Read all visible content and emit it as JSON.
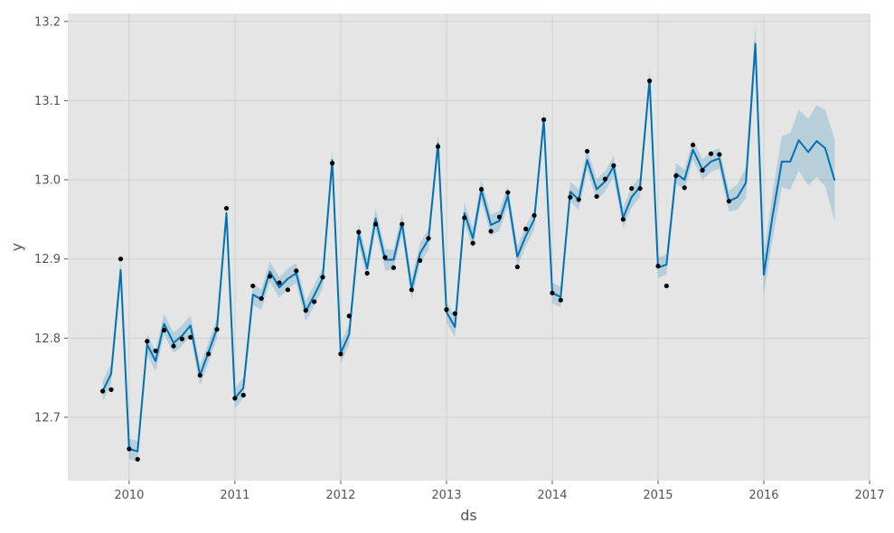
{
  "chart_data": {
    "type": "line",
    "title": "",
    "xlabel": "ds",
    "ylabel": "y",
    "xlim": [
      2009.42,
      2017.0
    ],
    "ylim": [
      12.62,
      13.21
    ],
    "grid": true,
    "x_ticks": [
      2010,
      2011,
      2012,
      2013,
      2014,
      2015,
      2016,
      2017
    ],
    "x_tick_labels": [
      "2010",
      "2011",
      "2012",
      "2013",
      "2014",
      "2015",
      "2016",
      "2017"
    ],
    "y_ticks": [
      12.7,
      12.8,
      12.9,
      13.0,
      13.1,
      13.2
    ],
    "y_tick_labels": [
      "12.7",
      "12.8",
      "12.9",
      "13.0",
      "13.1",
      "13.2"
    ],
    "colors": {
      "plot_background": "#e5e5e5",
      "grid": "#d0d0d0",
      "forecast_line": "#0072b2",
      "uncertainty_band": "#0072b2",
      "observed_points": "#000000"
    },
    "observed": {
      "x": [
        2009.75,
        2009.83,
        2009.92,
        2010.0,
        2010.08,
        2010.17,
        2010.25,
        2010.33,
        2010.42,
        2010.5,
        2010.58,
        2010.67,
        2010.75,
        2010.83,
        2010.92,
        2011.0,
        2011.08,
        2011.17,
        2011.25,
        2011.33,
        2011.42,
        2011.5,
        2011.58,
        2011.67,
        2011.75,
        2011.83,
        2011.92,
        2012.0,
        2012.08,
        2012.17,
        2012.25,
        2012.33,
        2012.42,
        2012.5,
        2012.58,
        2012.67,
        2012.75,
        2012.83,
        2012.92,
        2013.0,
        2013.08,
        2013.17,
        2013.25,
        2013.33,
        2013.42,
        2013.5,
        2013.58,
        2013.67,
        2013.75,
        2013.83,
        2013.92,
        2014.0,
        2014.08,
        2014.17,
        2014.25,
        2014.33,
        2014.42,
        2014.5,
        2014.58,
        2014.67,
        2014.75,
        2014.83,
        2014.92,
        2015.0,
        2015.08,
        2015.17,
        2015.25,
        2015.33,
        2015.42,
        2015.5,
        2015.58,
        2015.67
      ],
      "y": [
        12.733,
        12.735,
        12.9,
        12.66,
        12.647,
        12.796,
        12.784,
        12.81,
        12.79,
        12.799,
        12.801,
        12.753,
        12.78,
        12.811,
        12.964,
        12.724,
        12.728,
        12.866,
        12.85,
        12.878,
        12.87,
        12.861,
        12.885,
        12.835,
        12.846,
        12.877,
        13.021,
        12.78,
        12.828,
        12.934,
        12.882,
        12.944,
        12.902,
        12.889,
        12.944,
        12.861,
        12.898,
        12.926,
        13.042,
        12.836,
        12.831,
        12.952,
        12.92,
        12.988,
        12.935,
        12.953,
        12.984,
        12.89,
        12.938,
        12.955,
        13.076,
        12.857,
        12.848,
        12.978,
        12.975,
        13.036,
        12.979,
        13.001,
        13.018,
        12.95,
        12.989,
        12.989,
        13.125,
        12.891,
        12.866,
        13.005,
        12.99,
        13.044,
        13.012,
        13.033,
        13.032,
        12.973
      ]
    },
    "forecast": {
      "x": [
        2009.75,
        2009.83,
        2009.92,
        2010.0,
        2010.08,
        2010.17,
        2010.25,
        2010.33,
        2010.42,
        2010.5,
        2010.58,
        2010.67,
        2010.75,
        2010.83,
        2010.92,
        2011.0,
        2011.08,
        2011.17,
        2011.25,
        2011.33,
        2011.42,
        2011.5,
        2011.58,
        2011.67,
        2011.75,
        2011.83,
        2011.92,
        2012.0,
        2012.08,
        2012.17,
        2012.25,
        2012.33,
        2012.42,
        2012.5,
        2012.58,
        2012.67,
        2012.75,
        2012.83,
        2012.92,
        2013.0,
        2013.08,
        2013.17,
        2013.25,
        2013.33,
        2013.42,
        2013.5,
        2013.58,
        2013.67,
        2013.75,
        2013.83,
        2013.92,
        2014.0,
        2014.08,
        2014.17,
        2014.25,
        2014.33,
        2014.42,
        2014.5,
        2014.58,
        2014.67,
        2014.75,
        2014.83,
        2014.92,
        2015.0,
        2015.08,
        2015.17,
        2015.25,
        2015.33,
        2015.42,
        2015.5,
        2015.58,
        2015.67,
        2015.75,
        2015.83,
        2015.92,
        2016.0,
        2016.08,
        2016.17,
        2016.25,
        2016.33,
        2016.42,
        2016.5,
        2016.58,
        2016.67
      ],
      "yhat": [
        12.733,
        12.755,
        12.886,
        12.66,
        12.657,
        12.792,
        12.771,
        12.818,
        12.794,
        12.803,
        12.816,
        12.753,
        12.782,
        12.812,
        12.958,
        12.724,
        12.737,
        12.855,
        12.849,
        12.884,
        12.864,
        12.875,
        12.882,
        12.834,
        12.854,
        12.876,
        13.025,
        12.781,
        12.805,
        12.932,
        12.888,
        12.951,
        12.899,
        12.899,
        12.945,
        12.862,
        12.907,
        12.925,
        13.046,
        12.833,
        12.814,
        12.958,
        12.926,
        12.987,
        12.943,
        12.948,
        12.98,
        12.903,
        12.929,
        12.95,
        13.076,
        12.857,
        12.852,
        12.985,
        12.975,
        13.025,
        12.988,
        12.998,
        13.017,
        12.952,
        12.978,
        12.991,
        13.127,
        12.889,
        12.893,
        13.008,
        13.0,
        13.038,
        13.013,
        13.023,
        13.027,
        12.973,
        12.978,
        12.996,
        13.172,
        12.88,
        12.952,
        13.023,
        13.023,
        13.05,
        13.035,
        13.049,
        13.04,
        12.999
      ],
      "band_half_width_start": 0.013,
      "band_half_width_end": 0.052,
      "band_growth_start_x": 2015.67
    }
  }
}
